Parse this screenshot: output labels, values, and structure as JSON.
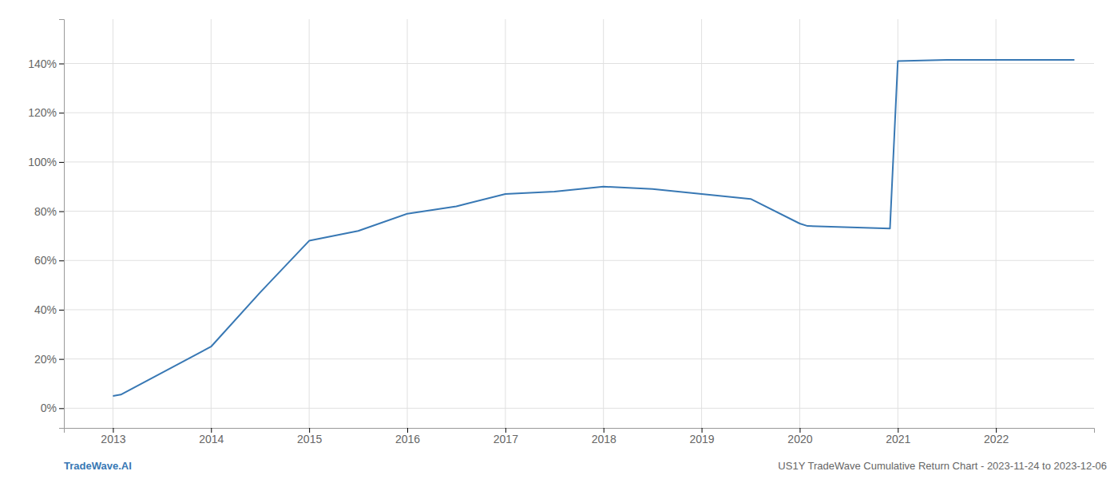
{
  "chart_data": {
    "type": "line",
    "x": [
      2013.0,
      2013.08,
      2014.0,
      2014.5,
      2015.0,
      2015.5,
      2016.0,
      2016.5,
      2017.0,
      2017.5,
      2018.0,
      2018.5,
      2019.0,
      2019.5,
      2020.0,
      2020.08,
      2020.92,
      2021.0,
      2021.5,
      2022.0,
      2022.8
    ],
    "values": [
      5,
      5.5,
      25,
      47,
      68,
      72,
      79,
      82,
      87,
      88,
      90,
      89,
      87,
      85,
      75,
      74,
      73,
      141,
      141.5,
      141.5,
      141.5
    ],
    "color": "#3878b4",
    "xlim": [
      2012.5,
      2023.0
    ],
    "ylim": [
      -8,
      158
    ],
    "xticks": [
      2013,
      2014,
      2015,
      2016,
      2017,
      2018,
      2019,
      2020,
      2021,
      2022
    ],
    "yticks": [
      {
        "value": 0,
        "label": "0%"
      },
      {
        "value": 20,
        "label": "20%"
      },
      {
        "value": 40,
        "label": "40%"
      },
      {
        "value": 60,
        "label": "60%"
      },
      {
        "value": 80,
        "label": "80%"
      },
      {
        "value": 100,
        "label": "100%"
      },
      {
        "value": 120,
        "label": "120%"
      },
      {
        "value": 140,
        "label": "140%"
      }
    ],
    "grid": true,
    "annotations": [
      {
        "text": "TradeWave.AI",
        "color": "#3878b4"
      },
      {
        "text": "US1Y TradeWave Cumulative Return Chart - 2023-11-24 to 2023-12-06",
        "color": "#666666"
      }
    ]
  }
}
